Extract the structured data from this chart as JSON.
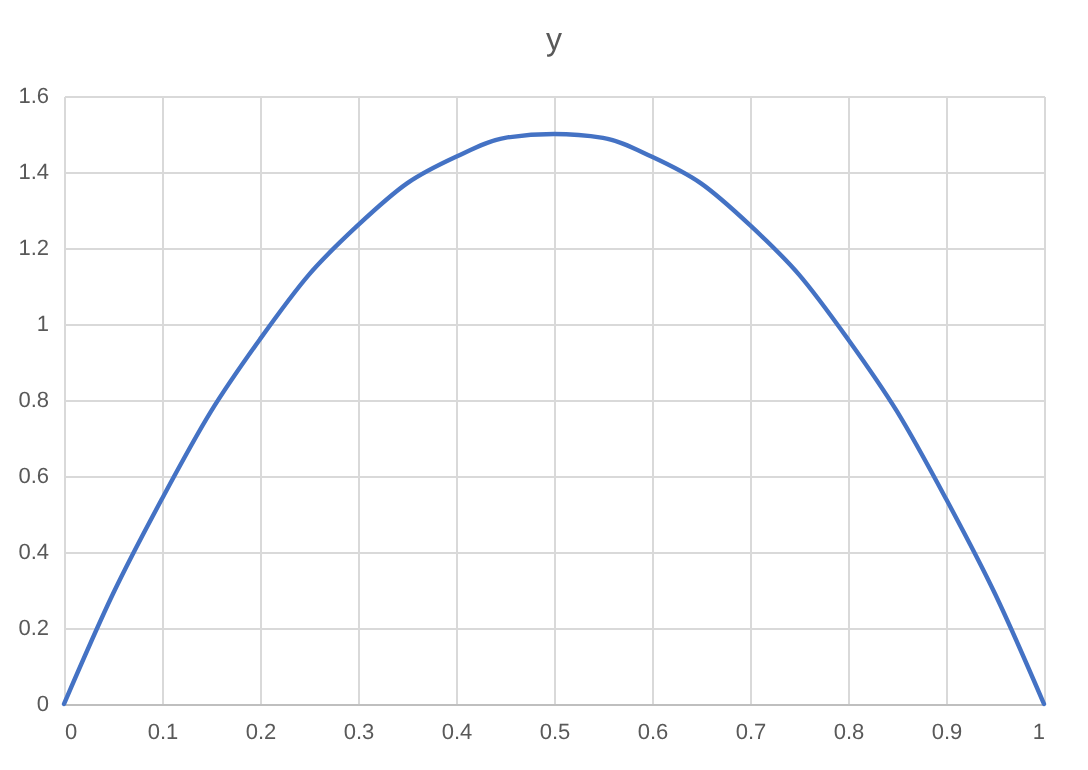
{
  "chart_data": {
    "type": "line",
    "title": "y",
    "x": [
      0,
      0.05,
      0.1,
      0.15,
      0.2,
      0.25,
      0.3,
      0.35,
      0.4,
      0.45,
      0.5,
      0.55,
      0.6,
      0.65,
      0.7,
      0.75,
      0.8,
      0.85,
      0.9,
      0.95,
      1
    ],
    "series": [
      {
        "color": "#4472c4",
        "values": [
          0,
          0.29,
          0.54,
          0.77,
          0.96,
          1.13,
          1.26,
          1.37,
          1.44,
          1.49,
          1.5,
          1.49,
          1.44,
          1.37,
          1.26,
          1.13,
          0.96,
          0.77,
          0.54,
          0.29,
          0
        ]
      }
    ],
    "xlim": [
      0,
      1
    ],
    "xticks": [
      0,
      0.1,
      0.2,
      0.3,
      0.4,
      0.5,
      0.6,
      0.7,
      0.8,
      0.9,
      1
    ],
    "ylim": [
      0,
      1.6
    ],
    "yticks": [
      0,
      0.2,
      0.4,
      0.6,
      0.8,
      1,
      1.2,
      1.4,
      1.6
    ],
    "grid": true,
    "legend": false,
    "marker": "none",
    "line_style": "solid"
  }
}
